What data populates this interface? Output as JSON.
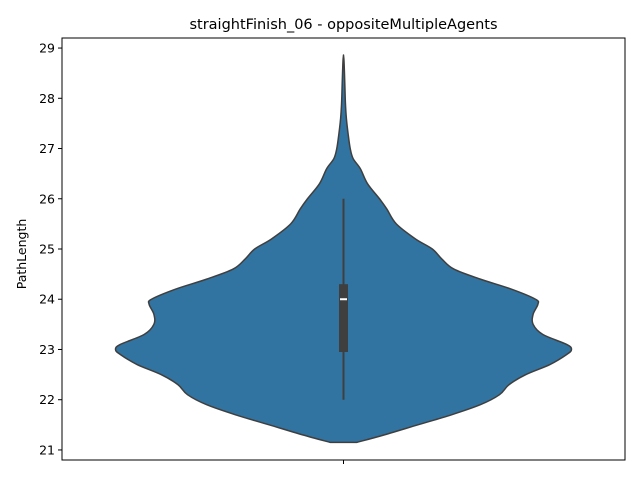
{
  "chart_data": {
    "type": "violin",
    "title": "straightFinish_06 - oppositeMultipleAgents",
    "xlabel": "",
    "ylabel": "PathLength",
    "ylim": [
      20.8,
      29.2
    ],
    "yticks": [
      "21",
      "22",
      "23",
      "24",
      "25",
      "26",
      "27",
      "28",
      "29"
    ],
    "grid": false,
    "legend": "none",
    "colors": {
      "fill": "#3274a1",
      "edge": "#3f3f3f",
      "box": "#3f3f3f",
      "median": "#ffffff"
    },
    "series": [
      {
        "density_profile": {
          "y": [
            21.15,
            21.3,
            21.5,
            21.7,
            21.9,
            22.1,
            22.3,
            22.5,
            22.7,
            22.9,
            23.0,
            23.1,
            23.3,
            23.5,
            23.7,
            23.9,
            24.0,
            24.2,
            24.4,
            24.6,
            24.8,
            25.0,
            25.2,
            25.5,
            25.8,
            26.0,
            26.3,
            26.6,
            26.8,
            27.0,
            27.3,
            27.6,
            27.9,
            28.2,
            28.5,
            28.75,
            28.85
          ],
          "density": [
            0.055,
            0.17,
            0.31,
            0.45,
            0.57,
            0.65,
            0.69,
            0.76,
            0.86,
            0.93,
            0.95,
            0.93,
            0.83,
            0.79,
            0.79,
            0.81,
            0.8,
            0.7,
            0.57,
            0.46,
            0.41,
            0.37,
            0.3,
            0.22,
            0.18,
            0.15,
            0.1,
            0.07,
            0.04,
            0.028,
            0.019,
            0.012,
            0.008,
            0.006,
            0.004,
            0.002,
            0.0
          ]
        },
        "whisker_low": 22.0,
        "q1": 22.95,
        "median": 24.0,
        "q3": 24.3,
        "whisker_high": 26.0
      }
    ]
  }
}
